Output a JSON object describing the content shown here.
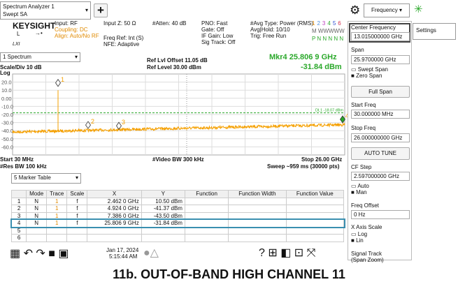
{
  "top_bar": {
    "analyzer": "Spectrum Analyzer 1",
    "mode": "Swept SA",
    "menu": "Frequency"
  },
  "info": {
    "logo": "KEYSIGHT",
    "logo_l": "L",
    "lxi": "LXI",
    "input": "Input: RF",
    "coupling": "Coupling: DC",
    "align": "Align: Auto/No RF",
    "input_z": "Input Z: 50 Ω",
    "freq_ref": "Freq Ref: Int (S)",
    "nfe": "NFE: Adaptive",
    "atten": "#Atten: 40 dB",
    "pno": "PNO: Fast",
    "gate": "Gate: Off",
    "if_gain": "IF Gain: Low",
    "sig_track": "Sig Track: Off",
    "avg_type": "#Avg Type: Power (RMS)",
    "avg_hold": "Avg|Hold: 10/10",
    "trig": "Trig: Free Run",
    "trace_numbers": [
      "1",
      "2",
      "3",
      "4",
      "5",
      "6"
    ],
    "trace_types": "M WWWWW",
    "detectors": "P N N N N N"
  },
  "window": {
    "name": "1 Spectrum",
    "scale": "Scale/Div 10 dB",
    "log": "Log",
    "ref_offset": "Ref Lvl Offset 11.05 dB",
    "ref_level": "Ref Level 30.00 dBm",
    "marker_freq": "Mkr4  25.806 9 GHz",
    "marker_amp": "-31.84 dBm",
    "y_labels": [
      "20.0",
      "10.0",
      "0.00",
      "-10.0",
      "-20.0",
      "-30.0",
      "-40.0",
      "-50.0",
      "-60.0"
    ],
    "display_line": "DL1 -18.07 dBm",
    "marker_ids": [
      "1",
      "2",
      "3",
      "4"
    ],
    "start": "Start 30 MHz",
    "res_bw": "#Res BW 100 kHz",
    "video_bw": "#Video BW 300 kHz",
    "stop": "Stop 26.00 GHz",
    "sweep": "Sweep ~959 ms (30000 pts)"
  },
  "marker_table": {
    "title": "5 Marker Table",
    "columns": [
      "Mode",
      "Trace",
      "Scale",
      "X",
      "Y",
      "Function",
      "Function Width",
      "Function Value"
    ],
    "rows": [
      [
        "1",
        "N",
        "1",
        "f",
        "2.462 0 GHz",
        "10.50 dBm"
      ],
      [
        "2",
        "N",
        "1",
        "f",
        "4.924 0 GHz",
        "-41.37 dBm"
      ],
      [
        "3",
        "N",
        "1",
        "f",
        "7.386 0 GHz",
        "-43.50 dBm"
      ],
      [
        "4",
        "N",
        "1",
        "f",
        "25.806 9 GHz",
        "-31.84 dBm"
      ],
      [
        "5"
      ],
      [
        "6"
      ]
    ]
  },
  "status": {
    "date": "Jan 17, 2024",
    "time": "5:15:44 AM"
  },
  "panel": {
    "tab": "Settings",
    "center_freq": "Center Frequency",
    "center_freq_value": "13.015000000 GHz",
    "span": "Span",
    "span_value": "25.9700000 GHz",
    "swept_span": "Swept Span",
    "zero_span": "Zero Span",
    "full_span": "Full Span",
    "start_freq": "Start Freq",
    "start_freq_value": "30.000000 MHz",
    "stop_freq": "Stop Freq",
    "stop_freq_value": "26.000000000 GHz",
    "auto_tune": "AUTO TUNE",
    "cf_step": "CF Step",
    "cf_step_value": "2.597000000 GHz",
    "auto": "Auto",
    "man": "Man",
    "freq_offset": "Freq Offset",
    "freq_offset_value": "0 Hz",
    "x_axis_scale": "X Axis Scale",
    "log": "Log",
    "lin": "Lin",
    "signal_track": "Signal Track",
    "span_zoom": "(Span Zoom)"
  },
  "caption": "11b. OUT-OF-BAND HIGH CHANNEL 11"
}
